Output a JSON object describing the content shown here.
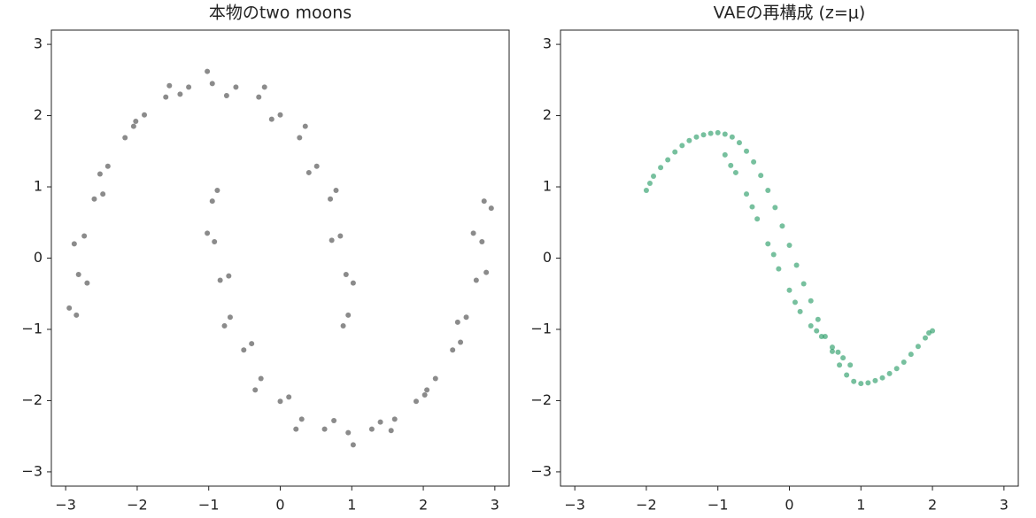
{
  "chart_data": [
    {
      "type": "scatter",
      "title": "本物のtwo moons",
      "color": "#4d4d4d",
      "x": [
        0.95,
        0.92,
        0.84,
        0.7,
        0.51,
        0.27,
        0.0,
        -0.3,
        -0.62,
        -0.95,
        -1.28,
        -1.6,
        -1.9,
        -2.17,
        -2.41,
        -2.6,
        -2.74,
        -2.82,
        -2.85,
        0.88,
        1.02,
        0.72,
        0.78,
        0.4,
        0.35,
        -0.12,
        -0.22,
        -0.75,
        -1.02,
        -1.4,
        -1.55,
        -2.02,
        -2.05,
        -2.52,
        -2.48,
        -2.88,
        -2.7,
        -2.95,
        -0.95,
        -0.92,
        -0.84,
        -0.7,
        -0.51,
        -0.27,
        0.0,
        0.3,
        0.62,
        0.95,
        1.28,
        1.6,
        1.9,
        2.17,
        2.41,
        2.6,
        2.74,
        2.82,
        2.85,
        -0.88,
        -1.02,
        -0.72,
        -0.78,
        -0.4,
        -0.35,
        0.12,
        0.22,
        0.75,
        1.02,
        1.4,
        1.55,
        2.02,
        2.05,
        2.52,
        2.48,
        2.88,
        2.7,
        2.95
      ],
      "y": [
        -0.8,
        -0.23,
        0.31,
        0.83,
        1.29,
        1.69,
        2.01,
        2.26,
        2.4,
        2.45,
        2.4,
        2.26,
        2.01,
        1.69,
        1.29,
        0.83,
        0.31,
        -0.23,
        -0.8,
        -0.95,
        -0.35,
        0.25,
        0.95,
        1.2,
        1.85,
        1.95,
        2.4,
        2.28,
        2.62,
        2.3,
        2.42,
        1.92,
        1.85,
        1.18,
        0.9,
        0.2,
        -0.35,
        -0.7,
        0.8,
        0.23,
        -0.31,
        -0.83,
        -1.29,
        -1.69,
        -2.01,
        -2.26,
        -2.4,
        -2.45,
        -2.4,
        -2.26,
        -2.01,
        -1.69,
        -1.29,
        -0.83,
        -0.31,
        0.23,
        0.8,
        0.95,
        0.35,
        -0.25,
        -0.95,
        -1.2,
        -1.85,
        -1.95,
        -2.4,
        -2.28,
        -2.62,
        -2.3,
        -2.42,
        -1.92,
        -1.85,
        -1.18,
        -0.9,
        -0.2,
        0.35,
        0.7
      ],
      "xlim": [
        -3.2,
        3.2
      ],
      "ylim": [
        -3.2,
        3.2
      ],
      "xticks": [
        {
          "value": -3,
          "label": "−3"
        },
        {
          "value": -2,
          "label": "−2"
        },
        {
          "value": -1,
          "label": "−1"
        },
        0,
        1,
        2,
        3
      ],
      "yticks": [
        {
          "value": -3,
          "label": "−3"
        },
        {
          "value": -2,
          "label": "−2"
        },
        {
          "value": -1,
          "label": "−1"
        },
        0,
        1,
        2,
        3
      ]
    },
    {
      "type": "scatter",
      "title": "VAEの再構成 (z=μ)",
      "color": "#2e9e6a",
      "x": [
        -2.0,
        -1.9,
        -1.7,
        -1.5,
        -1.3,
        -1.1,
        -0.9,
        -0.7,
        -0.5,
        -0.3,
        -0.1,
        0.1,
        0.3,
        0.5,
        0.7,
        0.9,
        1.1,
        1.3,
        1.5,
        1.7,
        1.9,
        2.0,
        -1.95,
        -1.8,
        -1.6,
        -1.4,
        -1.2,
        -1.0,
        -0.8,
        -0.6,
        -0.4,
        -0.2,
        0.0,
        0.2,
        0.4,
        0.6,
        0.8,
        1.0,
        1.2,
        1.4,
        1.6,
        1.8,
        1.95,
        -0.9,
        -0.75,
        -0.6,
        -0.45,
        -0.3,
        -0.15,
        0.0,
        0.15,
        0.3,
        0.45,
        0.6,
        0.75,
        0.85,
        -0.82,
        -0.52,
        -0.22,
        0.08,
        0.38,
        0.68
      ],
      "y": [
        0.95,
        1.15,
        1.38,
        1.58,
        1.7,
        1.75,
        1.74,
        1.62,
        1.35,
        0.95,
        0.45,
        -0.1,
        -0.6,
        -1.1,
        -1.5,
        -1.73,
        -1.75,
        -1.68,
        -1.55,
        -1.35,
        -1.12,
        -1.02,
        1.05,
        1.27,
        1.49,
        1.65,
        1.73,
        1.76,
        1.7,
        1.5,
        1.16,
        0.71,
        0.18,
        -0.36,
        -0.86,
        -1.31,
        -1.64,
        -1.76,
        -1.72,
        -1.62,
        -1.46,
        -1.24,
        -1.05,
        1.45,
        1.2,
        0.9,
        0.55,
        0.2,
        -0.15,
        -0.45,
        -0.75,
        -0.95,
        -1.1,
        -1.25,
        -1.4,
        -1.5,
        1.3,
        0.72,
        0.05,
        -0.62,
        -1.02,
        -1.32
      ],
      "xlim": [
        -3.2,
        3.2
      ],
      "ylim": [
        -3.2,
        3.2
      ],
      "xticks": [
        {
          "value": -3,
          "label": "−3"
        },
        {
          "value": -2,
          "label": "−2"
        },
        {
          "value": -1,
          "label": "−1"
        },
        0,
        1,
        2,
        3
      ],
      "yticks": [
        {
          "value": -3,
          "label": "−3"
        },
        {
          "value": -2,
          "label": "−2"
        },
        {
          "value": -1,
          "label": "−1"
        },
        0,
        1,
        2,
        3
      ]
    }
  ]
}
